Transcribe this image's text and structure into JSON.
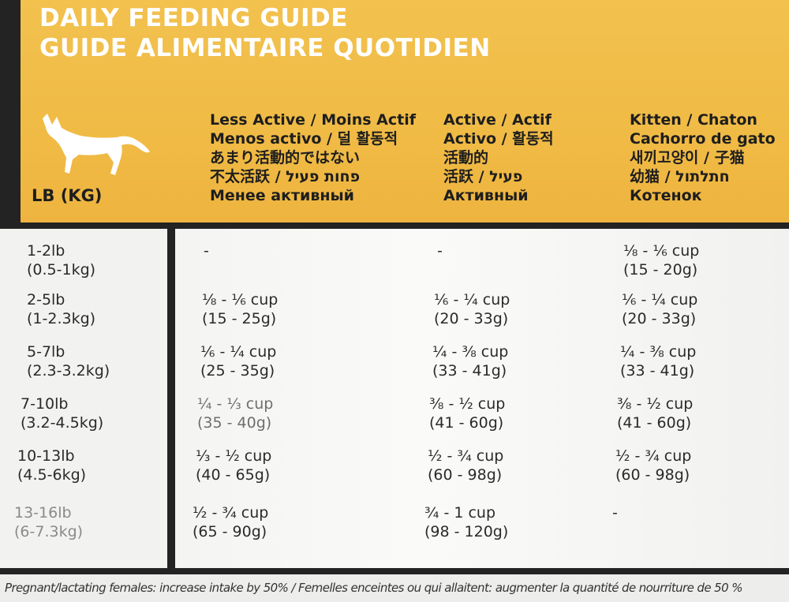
{
  "title": {
    "line1": "DAILY FEEDING GUIDE",
    "line2": "GUIDE ALIMENTAIRE QUOTIDIEN"
  },
  "cat_icon": "cat-silhouette-icon",
  "unit_label": "LB (KG)",
  "columns": [
    {
      "lines": [
        "Less Active / Moins Actif",
        "Menos activo / 덜 활동적",
        "あまり活動的ではない",
        "不太活跃 / פחות פעיל",
        "Менее активный"
      ]
    },
    {
      "lines": [
        "Active / Actif",
        "Activo / 활동적",
        "活動的",
        "活跃 / פעיל",
        "Активный"
      ]
    },
    {
      "lines": [
        "Kitten / Chaton",
        "Cachorro de gato",
        "새끼고양이 / 子猫",
        "幼猫 / חתלתול",
        "Котенок"
      ]
    }
  ],
  "rows": [
    {
      "lb": "1-2lb",
      "kg": "(0.5-1kg)",
      "cells": [
        {
          "cup": "-",
          "g": ""
        },
        {
          "cup": "-",
          "g": ""
        },
        {
          "cup": "⅛ - ⅙ cup",
          "g": "(15 - 20g)"
        }
      ]
    },
    {
      "lb": "2-5lb",
      "kg": "(1-2.3kg)",
      "cells": [
        {
          "cup": "⅛ - ⅙ cup",
          "g": "(15 - 25g)"
        },
        {
          "cup": "⅙ - ¼ cup",
          "g": "(20 - 33g)"
        },
        {
          "cup": "⅙ - ¼ cup",
          "g": "(20 - 33g)"
        }
      ]
    },
    {
      "lb": "5-7lb",
      "kg": "(2.3-3.2kg)",
      "cells": [
        {
          "cup": "⅙ - ¼ cup",
          "g": "(25 - 35g)"
        },
        {
          "cup": "¼ - ⅜ cup",
          "g": "(33 - 41g)"
        },
        {
          "cup": "¼ - ⅜ cup",
          "g": "(33 - 41g)"
        }
      ]
    },
    {
      "lb": "7-10lb",
      "kg": "(3.2-4.5kg)",
      "cells": [
        {
          "cup": "¼ - ⅓ cup",
          "g": "(35 - 40g)"
        },
        {
          "cup": "⅜ - ½ cup",
          "g": "(41 - 60g)"
        },
        {
          "cup": "⅜ - ½ cup",
          "g": "(41 - 60g)"
        }
      ]
    },
    {
      "lb": "10-13lb",
      "kg": "(4.5-6kg)",
      "cells": [
        {
          "cup": "⅓ - ½ cup",
          "g": "(40 - 65g)"
        },
        {
          "cup": "½ - ¾ cup",
          "g": "(60 - 98g)"
        },
        {
          "cup": "½ - ¾ cup",
          "g": "(60 - 98g)"
        }
      ]
    },
    {
      "lb": "13-16lb",
      "kg": "(6-7.3kg)",
      "cells": [
        {
          "cup": "½ - ¾ cup",
          "g": "(65 - 90g)"
        },
        {
          "cup": "¾ - 1 cup",
          "g": "(98 - 120g)"
        },
        {
          "cup": "-",
          "g": ""
        }
      ]
    }
  ],
  "footer": "Pregnant/lactating females: increase intake by 50% / Femelles enceintes ou qui allaitent: augmenter la quantité de nourriture de 50 %",
  "colors": {
    "header": "#f0bb45",
    "panel": "#f4f4f2",
    "frame": "#232323"
  }
}
